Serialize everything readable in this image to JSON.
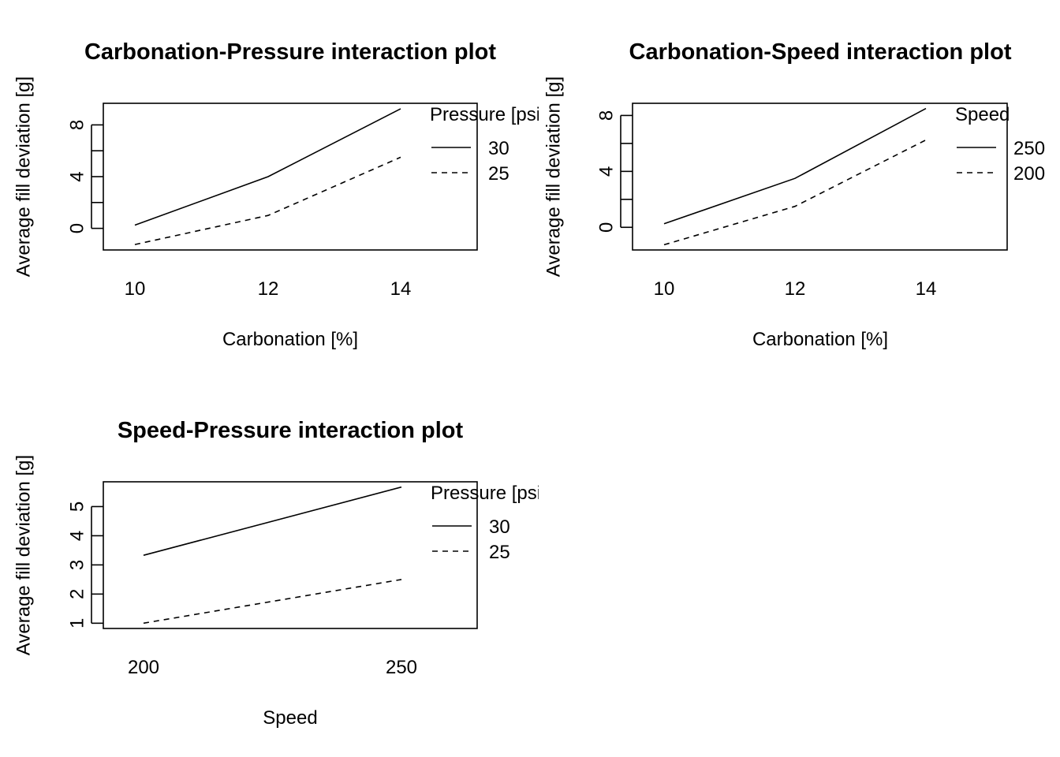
{
  "chart_data": [
    {
      "type": "line",
      "title": "Carbonation-Pressure interaction plot",
      "xlabel": "Carbonation [%]",
      "ylabel": "Average fill deviation [g]",
      "x": [
        10,
        12,
        14
      ],
      "x_ticks": [
        "10",
        "12",
        "14"
      ],
      "y_ticks": [
        0,
        2,
        4,
        6,
        8
      ],
      "y_tick_labels": [
        "0",
        "",
        "4",
        "",
        "8"
      ],
      "ylim": [
        -1.67,
        9.67
      ],
      "legend_title": "Pressure [psi]",
      "legend_placement": "right, outside top",
      "series": [
        {
          "name": "30",
          "dash": "solid",
          "values": [
            0.25,
            4.0,
            9.25
          ]
        },
        {
          "name": "25",
          "dash": "dashed",
          "values": [
            -1.25,
            1.0,
            5.5
          ]
        }
      ]
    },
    {
      "type": "line",
      "title": "Carbonation-Speed interaction plot",
      "xlabel": "Carbonation [%]",
      "ylabel": "Average fill deviation [g]",
      "x": [
        10,
        12,
        14
      ],
      "x_ticks": [
        "10",
        "12",
        "14"
      ],
      "y_ticks": [
        0,
        2,
        4,
        6,
        8
      ],
      "y_tick_labels": [
        "0",
        "",
        "4",
        "",
        "8"
      ],
      "ylim": [
        -1.62,
        8.87
      ],
      "legend_title": "Speed",
      "legend_placement": "right, outside top",
      "series": [
        {
          "name": "250",
          "dash": "solid",
          "values": [
            0.25,
            3.5,
            8.5
          ]
        },
        {
          "name": "200",
          "dash": "dashed",
          "values": [
            -1.25,
            1.5,
            6.25
          ]
        }
      ]
    },
    {
      "type": "line",
      "title": "Speed-Pressure interaction plot",
      "xlabel": "Speed",
      "ylabel": "Average fill deviation [g]",
      "x": [
        200,
        250
      ],
      "x_ticks": [
        "200",
        "250"
      ],
      "y_ticks": [
        1,
        2,
        3,
        4,
        5
      ],
      "y_tick_labels": [
        "1",
        "2",
        "3",
        "4",
        "5"
      ],
      "ylim": [
        0.82,
        5.85
      ],
      "legend_title": "Pressure [psi]",
      "legend_placement": "right, outside top",
      "series": [
        {
          "name": "30",
          "dash": "solid",
          "values": [
            3.33,
            5.67
          ]
        },
        {
          "name": "25",
          "dash": "dashed",
          "values": [
            1.0,
            2.5
          ]
        }
      ]
    }
  ]
}
